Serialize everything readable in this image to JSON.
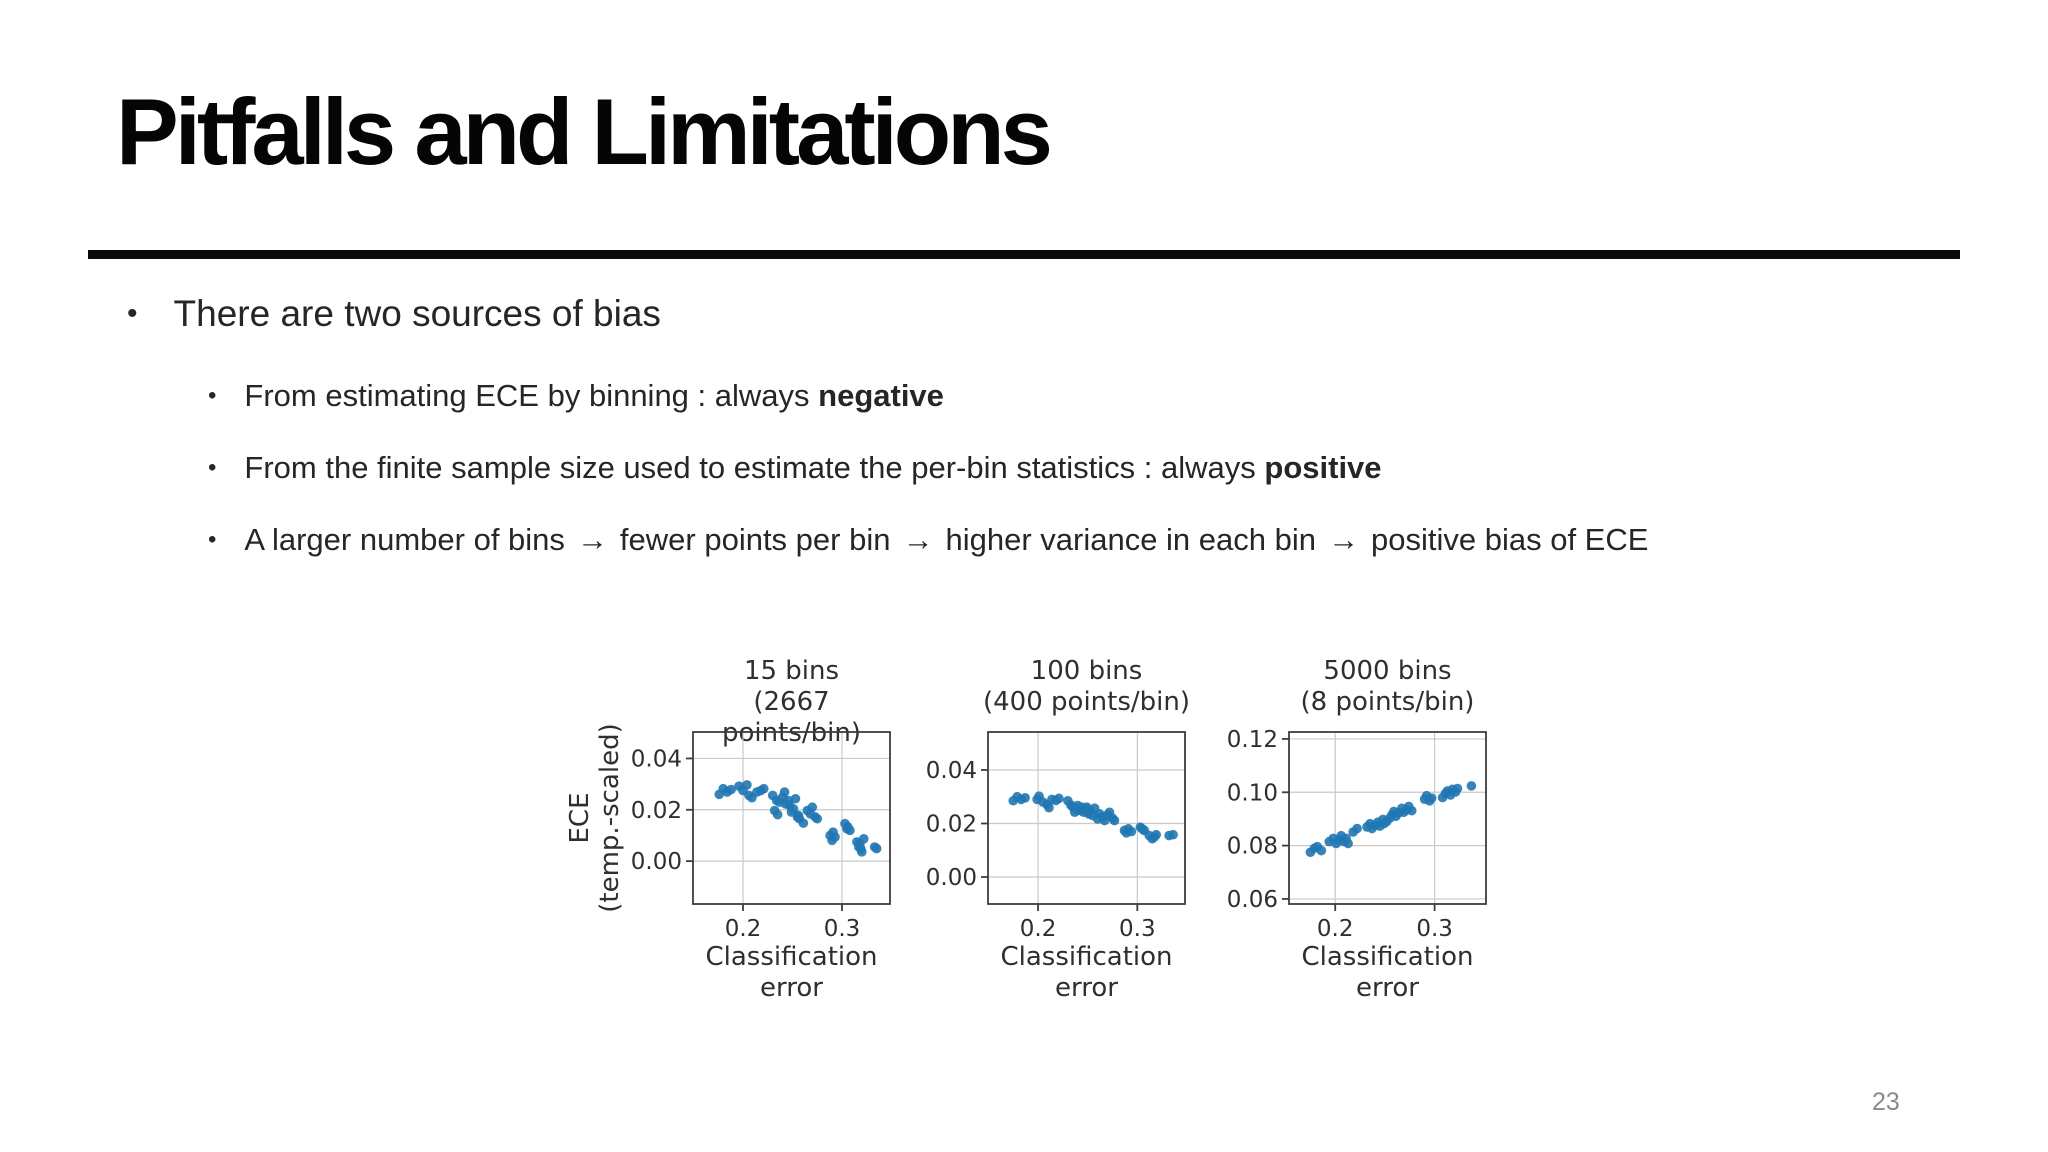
{
  "slide": {
    "title": "Pitfalls and Limitations",
    "page_number": "23"
  },
  "bullets": {
    "main_marker": "•",
    "sub_marker": "•",
    "arrow": "→",
    "main": "There are two sources of bias",
    "sub1_prefix": "From estimating ECE by binning : always ",
    "sub1_bold": "negative",
    "sub2_prefix": "From the finite sample size used to estimate the per-bin statistics : always ",
    "sub2_bold": "positive",
    "sub3": [
      "A larger number of bins",
      "fewer points per bin",
      "higher variance in each bin",
      "positive bias of ECE"
    ]
  },
  "colors": {
    "point": "#1f77b4",
    "grid": "#c9c9c9",
    "spine": "#3d3d3d",
    "chart_text": "#2f2f2f",
    "rule": "#0b0b0b",
    "page_number": "#8a8a8a"
  },
  "chart_data": [
    {
      "type": "scatter",
      "title": [
        "15 bins",
        "(2667 points/bin)"
      ],
      "ylabel": [
        "ECE",
        "(temp.-scaled)"
      ],
      "xlabel": [
        "Classification",
        "error"
      ],
      "xlim": [
        0.1495,
        0.3485
      ],
      "ylim": [
        -0.0167,
        0.0503
      ],
      "xticks": [
        0.2,
        0.3
      ],
      "xtick_labels": [
        "0.2",
        "0.3"
      ],
      "yticks": [
        0.0,
        0.02,
        0.04
      ],
      "ytick_labels": [
        "0.00",
        "0.02",
        "0.04"
      ],
      "grid": true,
      "points": [
        [
          0.176,
          0.026
        ],
        [
          0.18,
          0.0282
        ],
        [
          0.184,
          0.0269
        ],
        [
          0.188,
          0.0279
        ],
        [
          0.196,
          0.0292
        ],
        [
          0.2,
          0.0275
        ],
        [
          0.204,
          0.0297
        ],
        [
          0.206,
          0.0256
        ],
        [
          0.209,
          0.0247
        ],
        [
          0.214,
          0.0269
        ],
        [
          0.218,
          0.0275
        ],
        [
          0.221,
          0.0282
        ],
        [
          0.23,
          0.0256
        ],
        [
          0.232,
          0.0197
        ],
        [
          0.234,
          0.0236
        ],
        [
          0.235,
          0.0181
        ],
        [
          0.237,
          0.023
        ],
        [
          0.24,
          0.0249
        ],
        [
          0.242,
          0.0269
        ],
        [
          0.243,
          0.0223
        ],
        [
          0.246,
          0.0236
        ],
        [
          0.247,
          0.0217
        ],
        [
          0.249,
          0.0191
        ],
        [
          0.251,
          0.0204
        ],
        [
          0.253,
          0.0243
        ],
        [
          0.255,
          0.0172
        ],
        [
          0.256,
          0.0178
        ],
        [
          0.257,
          0.0165
        ],
        [
          0.261,
          0.0148
        ],
        [
          0.265,
          0.0197
        ],
        [
          0.268,
          0.0184
        ],
        [
          0.27,
          0.021
        ],
        [
          0.273,
          0.0172
        ],
        [
          0.275,
          0.0165
        ],
        [
          0.288,
          0.01
        ],
        [
          0.29,
          0.0081
        ],
        [
          0.291,
          0.0113
        ],
        [
          0.293,
          0.0094
        ],
        [
          0.303,
          0.0146
        ],
        [
          0.305,
          0.0126
        ],
        [
          0.306,
          0.0133
        ],
        [
          0.308,
          0.012
        ],
        [
          0.315,
          0.0075
        ],
        [
          0.317,
          0.0055
        ],
        [
          0.318,
          0.0068
        ],
        [
          0.319,
          0.0049
        ],
        [
          0.32,
          0.0036
        ],
        [
          0.322,
          0.0087
        ],
        [
          0.333,
          0.0055
        ],
        [
          0.335,
          0.0049
        ]
      ]
    },
    {
      "type": "scatter",
      "title": [
        "100 bins",
        "(400 points/bin)"
      ],
      "ylabel": [],
      "xlabel": [
        "Classification",
        "error"
      ],
      "xlim": [
        0.1496,
        0.348
      ],
      "ylim": [
        -0.0101,
        0.0542
      ],
      "xticks": [
        0.2,
        0.3
      ],
      "xtick_labels": [
        "0.2",
        "0.3"
      ],
      "yticks": [
        0.0,
        0.02,
        0.04
      ],
      "ytick_labels": [
        "0.00",
        "0.02",
        "0.04"
      ],
      "grid": true,
      "points": [
        [
          0.175,
          0.0285
        ],
        [
          0.179,
          0.03
        ],
        [
          0.183,
          0.029
        ],
        [
          0.187,
          0.0296
        ],
        [
          0.199,
          0.029
        ],
        [
          0.201,
          0.0302
        ],
        [
          0.205,
          0.028
        ],
        [
          0.209,
          0.0271
        ],
        [
          0.211,
          0.0259
        ],
        [
          0.214,
          0.029
        ],
        [
          0.218,
          0.0286
        ],
        [
          0.221,
          0.0294
        ],
        [
          0.23,
          0.0285
        ],
        [
          0.233,
          0.0269
        ],
        [
          0.235,
          0.0261
        ],
        [
          0.237,
          0.0242
        ],
        [
          0.239,
          0.0255
        ],
        [
          0.24,
          0.0267
        ],
        [
          0.242,
          0.0249
        ],
        [
          0.244,
          0.0261
        ],
        [
          0.246,
          0.0242
        ],
        [
          0.247,
          0.0255
        ],
        [
          0.249,
          0.0261
        ],
        [
          0.251,
          0.0236
        ],
        [
          0.252,
          0.0249
        ],
        [
          0.255,
          0.023
        ],
        [
          0.257,
          0.0257
        ],
        [
          0.26,
          0.0217
        ],
        [
          0.262,
          0.0236
        ],
        [
          0.265,
          0.0224
        ],
        [
          0.267,
          0.0211
        ],
        [
          0.27,
          0.0232
        ],
        [
          0.272,
          0.0242
        ],
        [
          0.275,
          0.022
        ],
        [
          0.277,
          0.0211
        ],
        [
          0.287,
          0.0174
        ],
        [
          0.289,
          0.0165
        ],
        [
          0.291,
          0.018
        ],
        [
          0.294,
          0.017
        ],
        [
          0.303,
          0.0186
        ],
        [
          0.305,
          0.018
        ],
        [
          0.307,
          0.0174
        ],
        [
          0.312,
          0.0155
        ],
        [
          0.315,
          0.0143
        ],
        [
          0.317,
          0.0149
        ],
        [
          0.319,
          0.0158
        ],
        [
          0.332,
          0.0155
        ],
        [
          0.336,
          0.0158
        ]
      ]
    },
    {
      "type": "scatter",
      "title": [
        "5000 bins",
        "(8 points/bin)"
      ],
      "ylabel": [],
      "xlabel": [
        "Classification",
        "error"
      ],
      "xlim": [
        0.1535,
        0.3517
      ],
      "ylim": [
        0.0581,
        0.1226
      ],
      "xticks": [
        0.2,
        0.3
      ],
      "xtick_labels": [
        "0.2",
        "0.3"
      ],
      "yticks": [
        0.06,
        0.08,
        0.1,
        0.12
      ],
      "ytick_labels": [
        "0.06",
        "0.08",
        "0.10",
        "0.12"
      ],
      "grid": true,
      "points": [
        [
          0.175,
          0.0775
        ],
        [
          0.179,
          0.079
        ],
        [
          0.182,
          0.0796
        ],
        [
          0.186,
          0.0781
        ],
        [
          0.194,
          0.0815
        ],
        [
          0.198,
          0.0827
        ],
        [
          0.201,
          0.0808
        ],
        [
          0.204,
          0.0821
        ],
        [
          0.206,
          0.0837
        ],
        [
          0.209,
          0.0815
        ],
        [
          0.211,
          0.0827
        ],
        [
          0.213,
          0.0808
        ],
        [
          0.218,
          0.0851
        ],
        [
          0.222,
          0.0864
        ],
        [
          0.232,
          0.087
        ],
        [
          0.235,
          0.0882
        ],
        [
          0.237,
          0.0864
        ],
        [
          0.24,
          0.0876
        ],
        [
          0.243,
          0.0888
        ],
        [
          0.245,
          0.0873
        ],
        [
          0.248,
          0.0898
        ],
        [
          0.249,
          0.0882
        ],
        [
          0.252,
          0.0891
        ],
        [
          0.255,
          0.0903
        ],
        [
          0.257,
          0.0915
        ],
        [
          0.259,
          0.0928
        ],
        [
          0.261,
          0.091
        ],
        [
          0.264,
          0.0923
        ],
        [
          0.267,
          0.094
        ],
        [
          0.269,
          0.0925
        ],
        [
          0.272,
          0.0934
        ],
        [
          0.274,
          0.0947
        ],
        [
          0.277,
          0.0931
        ],
        [
          0.29,
          0.0974
        ],
        [
          0.292,
          0.0987
        ],
        [
          0.295,
          0.0968
        ],
        [
          0.297,
          0.0978
        ],
        [
          0.308,
          0.098
        ],
        [
          0.311,
          0.0996
        ],
        [
          0.313,
          0.1005
        ],
        [
          0.316,
          0.099
        ],
        [
          0.318,
          0.1011
        ],
        [
          0.321,
          0.1001
        ],
        [
          0.323,
          0.1014
        ],
        [
          0.337,
          0.1024
        ]
      ]
    }
  ]
}
